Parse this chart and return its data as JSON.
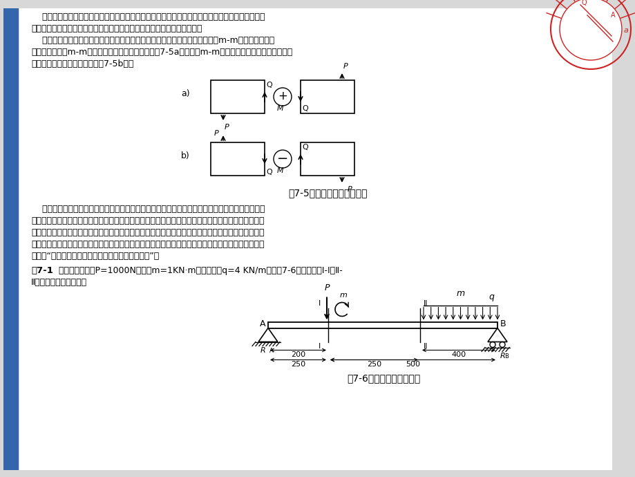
{
  "bg_color": "#d8d8d8",
  "content_bg": "#ffffff",
  "sidebar_color": "#3366aa",
  "main_text_lines": [
    "    梁内任一截面上的剪力大小，等于截面一侧（左或右）梁上所有外力的代数和；梁内任一截面上的",
    "弯矩大小，等于截面一侧（左或右）梁上外力对该截面形心力矩的代数和。",
    "    和前面计算轴力和扭矩一样，剪力和弯矩的正负也按梁的变形来确定。即截面m-m左段对右段向上",
    "错动时，则截面m-m上的剪力为正；反之，为负（图7-5a）。截面m-m处弯曲变形向下凸起时，则横截",
    "面上的弯矩为正；反之为负（图7-5b）。"
  ],
  "fig5_caption": "图7-5剪力与弯矩的正负规定",
  "body_text2_lines": [
    "    根据上述剪力和弯矩的正负规定，任一截面上的剪力和弯矩无论用这个截面左侧和右侧的外力来计",
    "算，所得数值的正负号都是一样的，由此确定外力的正负。计算剪力时，截面左侧向上的外力或截面右",
    "侧向下的外力取正值；反之取负值。计算弯矩时，截面左侧梁上外力对截面形心的力矩顺时针转向，截",
    "面右侧梁上外力对截面形心的力矩逆时针转向时取正值；反之，取负值。可将此规定归纳为一个简单的",
    "口诀：“左上右下，剪力为正；左顺右逆，弯矩为正”。"
  ],
  "example_label": "例7-1",
  "example_line1": "简支梁受集中力P=1000N，力偶m=1KN·m，均布载荷q=4 KN/m，如图7-6所示，试求Ⅰ-Ⅰ和Ⅱ-",
  "example_line2": "Ⅱ截面上的剪力和弯矩。",
  "fig6_caption": "图7-6受载荷作用的简支梁"
}
